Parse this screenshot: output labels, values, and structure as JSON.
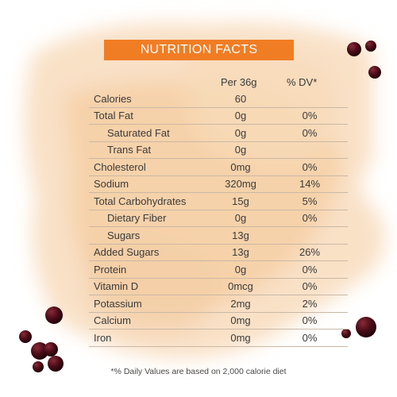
{
  "title": "NUTRITION FACTS",
  "headers": {
    "per": "Per 36g",
    "dv": "% DV*"
  },
  "rows": [
    {
      "name": "Calories",
      "amount": "60",
      "dv": "",
      "indent": false
    },
    {
      "name": "Total Fat",
      "amount": "0g",
      "dv": "0%",
      "indent": false
    },
    {
      "name": "Saturated Fat",
      "amount": "0g",
      "dv": "0%",
      "indent": true
    },
    {
      "name": "Trans Fat",
      "amount": "0g",
      "dv": "",
      "indent": true
    },
    {
      "name": "Cholesterol",
      "amount": "0mg",
      "dv": "0%",
      "indent": false
    },
    {
      "name": "Sodium",
      "amount": "320mg",
      "dv": "14%",
      "indent": false
    },
    {
      "name": "Total Carbohydrates",
      "amount": "15g",
      "dv": "5%",
      "indent": false
    },
    {
      "name": "Dietary Fiber",
      "amount": "0g",
      "dv": "0%",
      "indent": true
    },
    {
      "name": "Sugars",
      "amount": "13g",
      "dv": "",
      "indent": true
    },
    {
      "name": "Added Sugars",
      "amount": "13g",
      "dv": "26%",
      "indent": false
    },
    {
      "name": "Protein",
      "amount": "0g",
      "dv": "0%",
      "indent": false
    },
    {
      "name": "Vitamin D",
      "amount": "0mcg",
      "dv": "0%",
      "indent": false
    },
    {
      "name": "Potassium",
      "amount": "2mg",
      "dv": "2%",
      "indent": false
    },
    {
      "name": "Calcium",
      "amount": "0mg",
      "dv": "0%",
      "indent": false
    },
    {
      "name": "Iron",
      "amount": "0mg",
      "dv": "0%",
      "indent": false
    }
  ],
  "footnote": "*% Daily Values are based on 2,000 calorie diet",
  "colors": {
    "accent": "#f07d24",
    "watercolor": "#f6c99a",
    "boba": "#3b0a12"
  }
}
